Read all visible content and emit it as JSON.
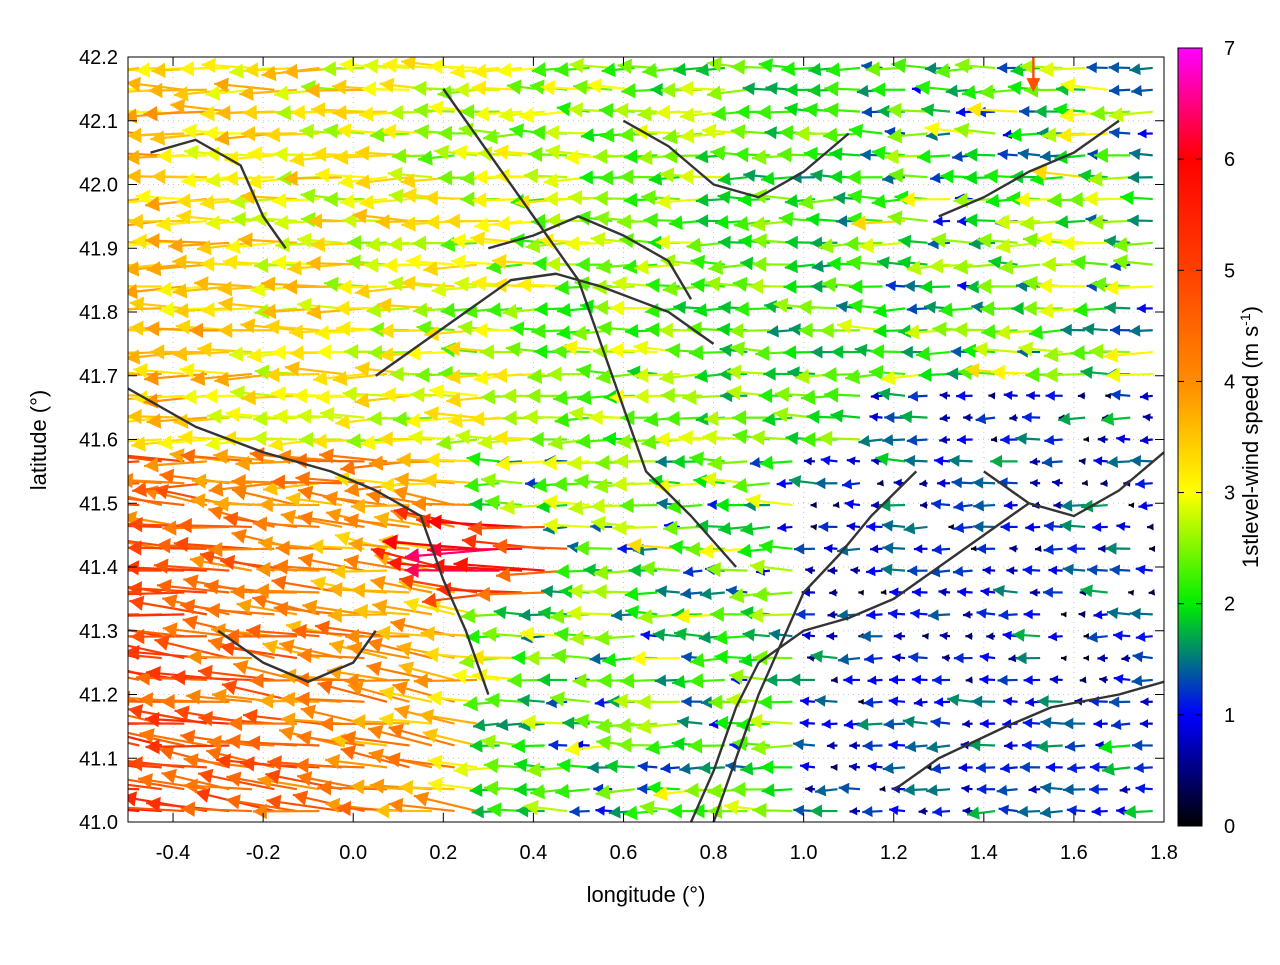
{
  "chart_data": {
    "type": "vector-field",
    "xlabel": "longitude (°)",
    "ylabel": "latitude (°)",
    "xlim": [
      -0.5,
      1.8
    ],
    "ylim": [
      41.0,
      42.2
    ],
    "xticks": [
      "-0.4",
      "-0.2",
      "0.0",
      "0.2",
      "0.4",
      "0.6",
      "0.8",
      "1.0",
      "1.2",
      "1.4",
      "1.6",
      "1.8"
    ],
    "xtick_values": [
      -0.4,
      -0.2,
      0.0,
      0.2,
      0.4,
      0.6,
      0.8,
      1.0,
      1.2,
      1.4,
      1.6,
      1.8
    ],
    "yticks": [
      "41.0",
      "41.1",
      "41.2",
      "41.3",
      "41.4",
      "41.5",
      "41.6",
      "41.7",
      "41.8",
      "41.9",
      "42.0",
      "42.1",
      "42.2"
    ],
    "ytick_values": [
      41.0,
      41.1,
      41.2,
      41.3,
      41.4,
      41.5,
      41.6,
      41.7,
      41.8,
      41.9,
      42.0,
      42.1,
      42.2
    ],
    "grid": true,
    "colorbar": {
      "label": "1stlevel-wind speed (m s",
      "label_sup": "-1",
      "label_end": ")",
      "range": [
        0,
        7
      ],
      "ticks": [
        "0",
        "1",
        "2",
        "3",
        "4",
        "5",
        "6",
        "7"
      ],
      "tick_values": [
        0,
        1,
        2,
        3,
        4,
        5,
        6,
        7
      ],
      "colors": [
        "#000000",
        "#0000ff",
        "#00ee00",
        "#ffff00",
        "#ff8c00",
        "#ff0000",
        "#ff00ff"
      ]
    },
    "field": {
      "description_grid": "wind vectors, mostly easterly (pointing west)",
      "strong_region": {
        "lon": [
          -0.5,
          0.3
        ],
        "lat": [
          41.0,
          41.6
        ],
        "speed": [
          3.5,
          5.5
        ]
      },
      "moderate_region": {
        "lon": [
          -0.5,
          1.2
        ],
        "lat": [
          41.6,
          42.2
        ],
        "speed": [
          2.0,
          3.5
        ]
      },
      "weak_region": {
        "lon": [
          1.0,
          1.8
        ],
        "lat": [
          41.0,
          41.7
        ],
        "speed": [
          0.3,
          1.2
        ]
      },
      "peak": {
        "lon": 0.35,
        "lat": 41.42,
        "speed": 6.5
      }
    },
    "contours": [
      {
        "lon": [
          -0.5,
          -0.35,
          -0.2,
          -0.05,
          0.05,
          0.15,
          0.2,
          0.25,
          0.3
        ],
        "lat": [
          41.68,
          41.62,
          41.58,
          41.55,
          41.52,
          41.48,
          41.38,
          41.3,
          41.2
        ]
      },
      {
        "lon": [
          0.2,
          0.3,
          0.4,
          0.5,
          0.55,
          0.6,
          0.65,
          0.75,
          0.85
        ],
        "lat": [
          42.15,
          42.05,
          41.95,
          41.85,
          41.75,
          41.65,
          41.55,
          41.48,
          41.4
        ]
      },
      {
        "lon": [
          0.75,
          0.8,
          0.85,
          0.9,
          1.0,
          1.1,
          1.2,
          1.3,
          1.4,
          1.5
        ],
        "lat": [
          41.0,
          41.08,
          41.18,
          41.25,
          41.3,
          41.32,
          41.35,
          41.4,
          41.45,
          41.5
        ]
      },
      {
        "lon": [
          0.8,
          0.85,
          0.9,
          0.95,
          1.0,
          1.08,
          1.15,
          1.25
        ],
        "lat": [
          41.0,
          41.1,
          41.2,
          41.28,
          41.36,
          41.42,
          41.48,
          41.55
        ]
      },
      {
        "lon": [
          1.2,
          1.3,
          1.45,
          1.55,
          1.7,
          1.8
        ],
        "lat": [
          41.05,
          41.1,
          41.15,
          41.18,
          41.2,
          41.22
        ]
      },
      {
        "lon": [
          0.05,
          0.15,
          0.25,
          0.35,
          0.45,
          0.55,
          0.7,
          0.8
        ],
        "lat": [
          41.7,
          41.75,
          41.8,
          41.85,
          41.86,
          41.84,
          41.8,
          41.75
        ]
      },
      {
        "lon": [
          0.3,
          0.4,
          0.5,
          0.6,
          0.7,
          0.75
        ],
        "lat": [
          41.9,
          41.92,
          41.95,
          41.92,
          41.88,
          41.82
        ]
      },
      {
        "lon": [
          0.6,
          0.7,
          0.8,
          0.9,
          1.0,
          1.1
        ],
        "lat": [
          42.1,
          42.06,
          42.0,
          41.98,
          42.02,
          42.08
        ]
      },
      {
        "lon": [
          -0.45,
          -0.35,
          -0.25,
          -0.2,
          -0.15
        ],
        "lat": [
          42.05,
          42.07,
          42.03,
          41.95,
          41.9
        ]
      },
      {
        "lon": [
          -0.3,
          -0.2,
          -0.1,
          0.0,
          0.05
        ],
        "lat": [
          41.3,
          41.25,
          41.22,
          41.25,
          41.3
        ]
      },
      {
        "lon": [
          1.4,
          1.5,
          1.6,
          1.7,
          1.8
        ],
        "lat": [
          41.55,
          41.5,
          41.48,
          41.52,
          41.58
        ]
      },
      {
        "lon": [
          1.3,
          1.4,
          1.5,
          1.6,
          1.7
        ],
        "lat": [
          41.95,
          41.98,
          42.02,
          42.05,
          42.1
        ]
      }
    ],
    "highlight_arrow": {
      "lon": 1.51,
      "lat": 42.17,
      "speed": 4.8,
      "direction": "south"
    }
  }
}
